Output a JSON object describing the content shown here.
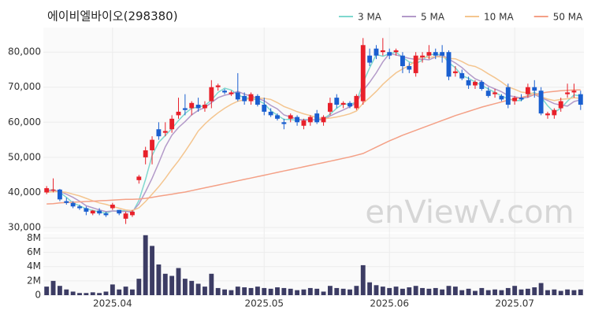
{
  "chart_data": {
    "type": "candlestick",
    "title": "에이비엘바이오(298380)",
    "watermark": "enViewV.com",
    "categories": [
      null,
      null,
      null,
      null,
      null,
      null,
      null,
      null,
      null,
      null,
      "2025.04",
      null,
      null,
      null,
      null,
      null,
      null,
      null,
      null,
      null,
      null,
      null,
      null,
      null,
      null,
      null,
      null,
      null,
      null,
      null,
      null,
      null,
      null,
      "2025.05",
      null,
      null,
      null,
      null,
      null,
      null,
      null,
      null,
      null,
      null,
      null,
      null,
      null,
      null,
      null,
      null,
      null,
      null,
      "2025.06",
      null,
      null,
      null,
      null,
      null,
      null,
      null,
      null,
      null,
      null,
      null,
      null,
      null,
      null,
      null,
      null,
      null,
      null,
      "2025.07",
      null,
      null,
      null,
      null,
      null,
      null,
      null,
      null,
      null,
      null
    ],
    "ohlc": {
      "up_color": "#e8202a",
      "down_color": "#1a5fd0",
      "open": [
        40000,
        40500,
        40800,
        37500,
        37000,
        36000,
        35500,
        34000,
        34800,
        34000,
        35500,
        35000,
        32500,
        33500,
        43500,
        50000,
        52000,
        58000,
        57000,
        58000,
        62000,
        64000,
        64000,
        65000,
        64000,
        66000,
        70000,
        69000,
        68000,
        68500,
        67500,
        66000,
        67500,
        65000,
        63000,
        62000,
        60000,
        61000,
        61500,
        59000,
        60000,
        62500,
        60000,
        63000,
        67000,
        65000,
        65500,
        64000,
        66000,
        79000,
        81000,
        80000,
        80000,
        80000,
        79000,
        76000,
        74000,
        78500,
        79000,
        80000,
        80000,
        80000,
        74000,
        74000,
        72000,
        70500,
        71500,
        69000,
        68000,
        67500,
        70000,
        66000,
        67000,
        68000,
        70000,
        69000,
        62000,
        62000,
        64000,
        68000,
        68500,
        68000
      ],
      "high": [
        41800,
        44000,
        41000,
        38500,
        37500,
        36500,
        36000,
        35000,
        35500,
        34500,
        37000,
        35000,
        34500,
        35000,
        45000,
        53000,
        56000,
        60000,
        60000,
        62000,
        67000,
        68000,
        66000,
        67000,
        66000,
        72000,
        71000,
        69500,
        69000,
        74000,
        68500,
        68500,
        68000,
        67000,
        64000,
        62500,
        61000,
        62500,
        62000,
        61000,
        62000,
        63500,
        62000,
        67000,
        68000,
        66000,
        66000,
        68000,
        84000,
        81000,
        82000,
        84000,
        81000,
        81000,
        80000,
        77000,
        80000,
        80000,
        82000,
        81000,
        82000,
        80500,
        76000,
        75000,
        73000,
        72000,
        72000,
        70000,
        69500,
        68000,
        71000,
        67500,
        68000,
        71000,
        72000,
        70000,
        63000,
        64000,
        67000,
        71000,
        71000,
        69000
      ],
      "low": [
        39500,
        40000,
        37500,
        36500,
        35500,
        35000,
        33500,
        33500,
        33500,
        33000,
        35000,
        33500,
        31000,
        33000,
        42500,
        48000,
        48000,
        55000,
        56000,
        57000,
        61000,
        62000,
        62000,
        63000,
        63000,
        64000,
        69000,
        68000,
        67500,
        66000,
        65000,
        65000,
        64500,
        62000,
        61500,
        60500,
        58000,
        60000,
        59000,
        58000,
        59000,
        59500,
        59000,
        62000,
        64000,
        64000,
        64000,
        63500,
        65000,
        76000,
        78000,
        79000,
        78000,
        79000,
        74000,
        74000,
        73000,
        77000,
        78000,
        78000,
        77000,
        72000,
        73000,
        72000,
        69500,
        69500,
        69000,
        67000,
        67000,
        66000,
        64000,
        65000,
        66000,
        67000,
        67000,
        62000,
        61000,
        61000,
        63000,
        67000,
        67000,
        63500
      ],
      "close": [
        41200,
        40800,
        38000,
        37000,
        36000,
        35500,
        34500,
        34800,
        34000,
        33500,
        36500,
        34000,
        34000,
        34500,
        44500,
        52000,
        55000,
        56000,
        57500,
        61000,
        63000,
        63500,
        65500,
        64000,
        65000,
        70000,
        70500,
        68500,
        68500,
        66500,
        66000,
        68000,
        65000,
        63000,
        62000,
        61000,
        59500,
        62000,
        60000,
        60500,
        61500,
        60000,
        61500,
        65500,
        65000,
        65500,
        64500,
        67500,
        82000,
        77000,
        79000,
        80500,
        79000,
        80500,
        76000,
        75000,
        79000,
        79000,
        80000,
        79000,
        79000,
        73000,
        74500,
        72500,
        70500,
        71500,
        69500,
        67500,
        68500,
        66500,
        65000,
        67000,
        66500,
        70000,
        69000,
        62500,
        62500,
        63500,
        66000,
        68500,
        69000,
        65000
      ]
    },
    "series": [
      {
        "name": "3 MA",
        "color": "#7fd8cf",
        "values": [
          40500,
          40800,
          40000,
          38600,
          37000,
          36200,
          35300,
          34900,
          34400,
          34100,
          34700,
          34700,
          34800,
          34200,
          37700,
          43700,
          50500,
          54300,
          56200,
          58200,
          60500,
          62500,
          64000,
          64300,
          64800,
          66300,
          68500,
          69700,
          69200,
          67800,
          67000,
          66800,
          66300,
          65300,
          63300,
          62000,
          60800,
          60800,
          60500,
          60800,
          60700,
          60700,
          61000,
          62300,
          64000,
          65300,
          65000,
          65800,
          71300,
          75500,
          79300,
          78800,
          79500,
          80000,
          78500,
          77200,
          76700,
          77700,
          79300,
          79300,
          79300,
          77000,
          75500,
          73300,
          72500,
          71500,
          70500,
          69500,
          68500,
          67500,
          66700,
          66200,
          66200,
          67800,
          68500,
          67200,
          64700,
          62800,
          64000,
          66000,
          67800,
          67500
        ]
      },
      {
        "name": "5 MA",
        "color": "#b39ac9",
        "values": [
          40500,
          40600,
          40300,
          39500,
          38600,
          37500,
          36200,
          35600,
          35000,
          34500,
          34700,
          34600,
          34500,
          34500,
          36700,
          40200,
          44000,
          48400,
          53000,
          56300,
          58500,
          60200,
          62100,
          63400,
          64200,
          65600,
          67000,
          67700,
          68100,
          68800,
          68000,
          67500,
          66800,
          66100,
          64800,
          63800,
          62100,
          61500,
          60900,
          60600,
          60700,
          60700,
          60700,
          61800,
          62700,
          63500,
          64400,
          65600,
          69000,
          71400,
          74100,
          77200,
          79600,
          79200,
          78700,
          78200,
          77900,
          78000,
          77800,
          78600,
          79200,
          78000,
          76900,
          75600,
          73900,
          72400,
          71600,
          70300,
          69500,
          68700,
          67600,
          67300,
          66900,
          67100,
          67900,
          67000,
          66200,
          65300,
          64900,
          64600,
          65900,
          66400
        ]
      },
      {
        "name": "10 MA",
        "color": "#f4c58f",
        "values": [
          40000,
          40200,
          40200,
          40000,
          39500,
          39000,
          38300,
          37600,
          37000,
          36600,
          36000,
          35500,
          35000,
          34800,
          35600,
          37400,
          39500,
          41600,
          44000,
          46600,
          49000,
          51700,
          54500,
          57500,
          59500,
          61200,
          62700,
          64000,
          65100,
          66000,
          66400,
          66900,
          66900,
          66800,
          66500,
          65600,
          64500,
          63800,
          63000,
          62400,
          61900,
          61300,
          61000,
          61200,
          61500,
          61900,
          62400,
          63200,
          65400,
          67000,
          68800,
          70800,
          72500,
          74100,
          75200,
          76200,
          77600,
          78700,
          78500,
          78700,
          78600,
          78200,
          78100,
          77300,
          76300,
          75900,
          75000,
          73800,
          72700,
          71500,
          70100,
          69400,
          68600,
          68400,
          68200,
          67300,
          66600,
          66200,
          66500,
          66700,
          67000,
          66800
        ]
      },
      {
        "name": "50 MA",
        "color": "#f4a086",
        "values": [
          36700,
          36800,
          37000,
          37100,
          37200,
          37300,
          37400,
          37500,
          37600,
          37700,
          37800,
          37900,
          38000,
          38000,
          38100,
          38300,
          38600,
          38900,
          39200,
          39500,
          39800,
          40100,
          40500,
          40900,
          41300,
          41700,
          42100,
          42500,
          42900,
          43300,
          43700,
          44100,
          44500,
          44900,
          45300,
          45700,
          46100,
          46500,
          46900,
          47300,
          47700,
          48100,
          48500,
          48900,
          49300,
          49700,
          50100,
          50600,
          51100,
          52000,
          52900,
          53800,
          54700,
          55500,
          56300,
          57000,
          57700,
          58400,
          59100,
          59800,
          60500,
          61200,
          61900,
          62500,
          63100,
          63700,
          64300,
          64800,
          65300,
          65800,
          66300,
          66700,
          67100,
          67500,
          67900,
          68300,
          68600,
          68800,
          69000,
          69100,
          69200,
          69200
        ]
      }
    ],
    "ylim": [
      28650,
      87000
    ],
    "yticks": [
      {
        "value": 30000,
        "label": "30,000"
      },
      {
        "value": 40000,
        "label": "40,000"
      },
      {
        "value": 50000,
        "label": "50,000"
      },
      {
        "value": 60000,
        "label": "60,000"
      },
      {
        "value": 70000,
        "label": "70,000"
      },
      {
        "value": 80000,
        "label": "80,000"
      }
    ],
    "grid": true,
    "legend": "top-right",
    "volume": {
      "color": "#3c3c64",
      "values": [
        1.2,
        2,
        1.3,
        0.8,
        0.5,
        0.3,
        0.3,
        0.4,
        0.3,
        0.5,
        1.5,
        0.8,
        1.2,
        0.8,
        2.3,
        8.4,
        6.9,
        4.3,
        3,
        2.7,
        3.8,
        2.3,
        2,
        1.6,
        1.2,
        3,
        1,
        0.8,
        0.7,
        1.2,
        1.1,
        1,
        1.2,
        1,
        0.9,
        1.1,
        1,
        0.9,
        0.7,
        0.8,
        1,
        0.9,
        0.5,
        1.3,
        1,
        0.9,
        0.8,
        1.3,
        4.2,
        1.8,
        1.4,
        1.2,
        1,
        1.2,
        0.9,
        1.1,
        1.3,
        1,
        0.9,
        1,
        0.8,
        1.3,
        1.2,
        0.7,
        0.9,
        0.6,
        1,
        0.7,
        0.8,
        0.7,
        1,
        1.3,
        0.8,
        0.9,
        1.1,
        1.7,
        0.7,
        0.8,
        0.6,
        0.8,
        0.7,
        0.8
      ],
      "ylim": [
        0,
        8.6
      ],
      "yticks": [
        0,
        {
          "value": 2,
          "label": "2M"
        },
        {
          "value": 4,
          "label": "4M"
        },
        {
          "value": 6,
          "label": "6M"
        },
        {
          "value": 8,
          "label": "8M"
        }
      ]
    }
  }
}
